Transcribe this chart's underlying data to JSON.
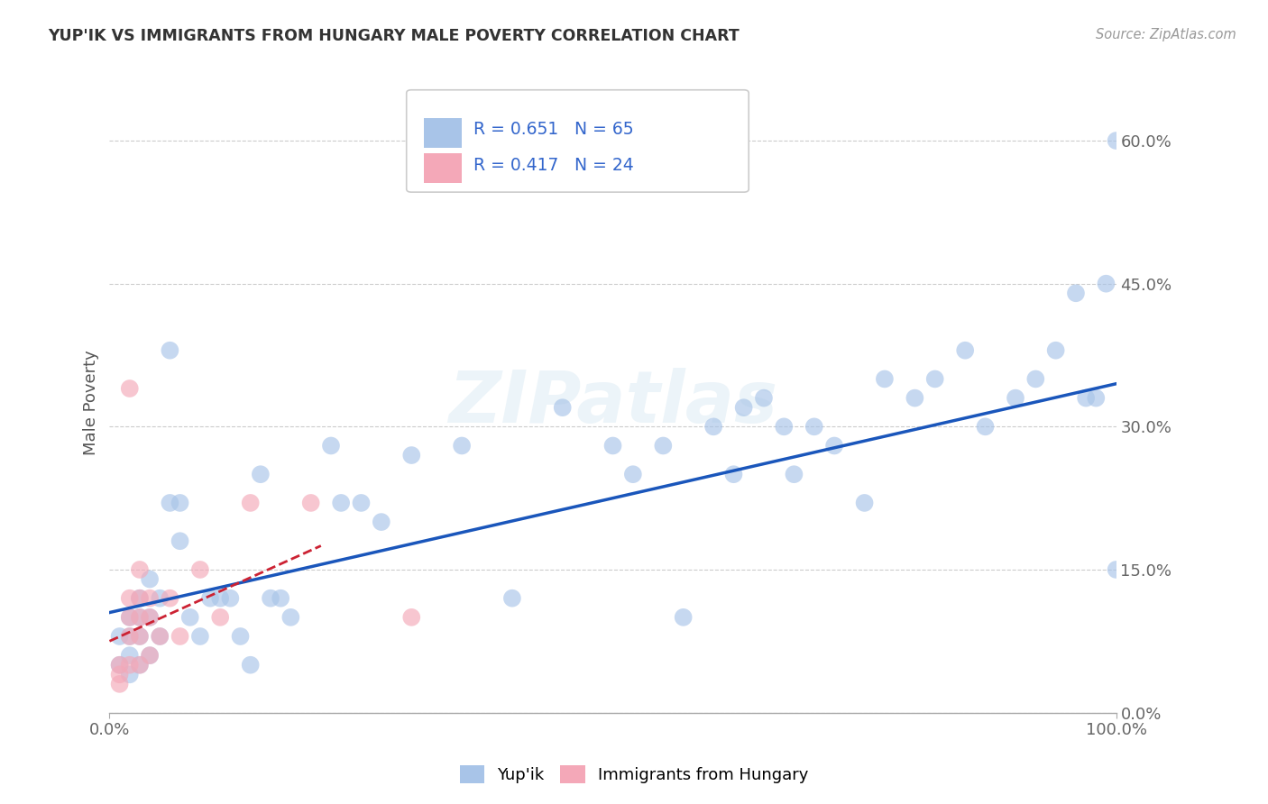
{
  "title": "YUP'IK VS IMMIGRANTS FROM HUNGARY MALE POVERTY CORRELATION CHART",
  "source": "Source: ZipAtlas.com",
  "ylabel": "Male Poverty",
  "xlim": [
    0,
    1.0
  ],
  "ylim": [
    0,
    0.65
  ],
  "ytick_labels": [
    "0.0%",
    "15.0%",
    "30.0%",
    "45.0%",
    "60.0%"
  ],
  "ytick_vals": [
    0.0,
    0.15,
    0.3,
    0.45,
    0.6
  ],
  "R_blue": 0.651,
  "N_blue": 65,
  "R_pink": 0.417,
  "N_pink": 24,
  "legend_R_color": "#3366cc",
  "blue_color": "#a8c4e8",
  "pink_color": "#f4a8b8",
  "blue_line_color": "#1a56bb",
  "pink_line_color": "#cc2233",
  "watermark": "ZIPatlas",
  "blue_scatter_x": [
    0.01,
    0.01,
    0.02,
    0.02,
    0.02,
    0.02,
    0.03,
    0.03,
    0.03,
    0.03,
    0.04,
    0.04,
    0.04,
    0.05,
    0.05,
    0.06,
    0.06,
    0.07,
    0.07,
    0.08,
    0.09,
    0.1,
    0.11,
    0.12,
    0.13,
    0.14,
    0.15,
    0.16,
    0.17,
    0.18,
    0.22,
    0.23,
    0.25,
    0.27,
    0.3,
    0.35,
    0.4,
    0.45,
    0.5,
    0.52,
    0.55,
    0.57,
    0.6,
    0.62,
    0.63,
    0.65,
    0.67,
    0.68,
    0.7,
    0.72,
    0.75,
    0.77,
    0.8,
    0.82,
    0.85,
    0.87,
    0.9,
    0.92,
    0.94,
    0.96,
    0.97,
    0.98,
    0.99,
    1.0,
    1.0
  ],
  "blue_scatter_y": [
    0.08,
    0.05,
    0.1,
    0.08,
    0.06,
    0.04,
    0.12,
    0.1,
    0.08,
    0.05,
    0.14,
    0.1,
    0.06,
    0.12,
    0.08,
    0.38,
    0.22,
    0.22,
    0.18,
    0.1,
    0.08,
    0.12,
    0.12,
    0.12,
    0.08,
    0.05,
    0.25,
    0.12,
    0.12,
    0.1,
    0.28,
    0.22,
    0.22,
    0.2,
    0.27,
    0.28,
    0.12,
    0.32,
    0.28,
    0.25,
    0.28,
    0.1,
    0.3,
    0.25,
    0.32,
    0.33,
    0.3,
    0.25,
    0.3,
    0.28,
    0.22,
    0.35,
    0.33,
    0.35,
    0.38,
    0.3,
    0.33,
    0.35,
    0.38,
    0.44,
    0.33,
    0.33,
    0.45,
    0.6,
    0.15
  ],
  "pink_scatter_x": [
    0.01,
    0.01,
    0.01,
    0.02,
    0.02,
    0.02,
    0.02,
    0.02,
    0.03,
    0.03,
    0.03,
    0.03,
    0.03,
    0.04,
    0.04,
    0.04,
    0.05,
    0.06,
    0.07,
    0.09,
    0.11,
    0.14,
    0.2,
    0.3
  ],
  "pink_scatter_y": [
    0.05,
    0.04,
    0.03,
    0.34,
    0.12,
    0.1,
    0.08,
    0.05,
    0.15,
    0.12,
    0.1,
    0.08,
    0.05,
    0.12,
    0.1,
    0.06,
    0.08,
    0.12,
    0.08,
    0.15,
    0.1,
    0.22,
    0.22,
    0.1
  ],
  "blue_line_x0": 0.0,
  "blue_line_x1": 1.0,
  "blue_line_y0": 0.105,
  "blue_line_y1": 0.345,
  "pink_line_x0": 0.0,
  "pink_line_x1": 0.21,
  "pink_line_y0": 0.075,
  "pink_line_y1": 0.175
}
